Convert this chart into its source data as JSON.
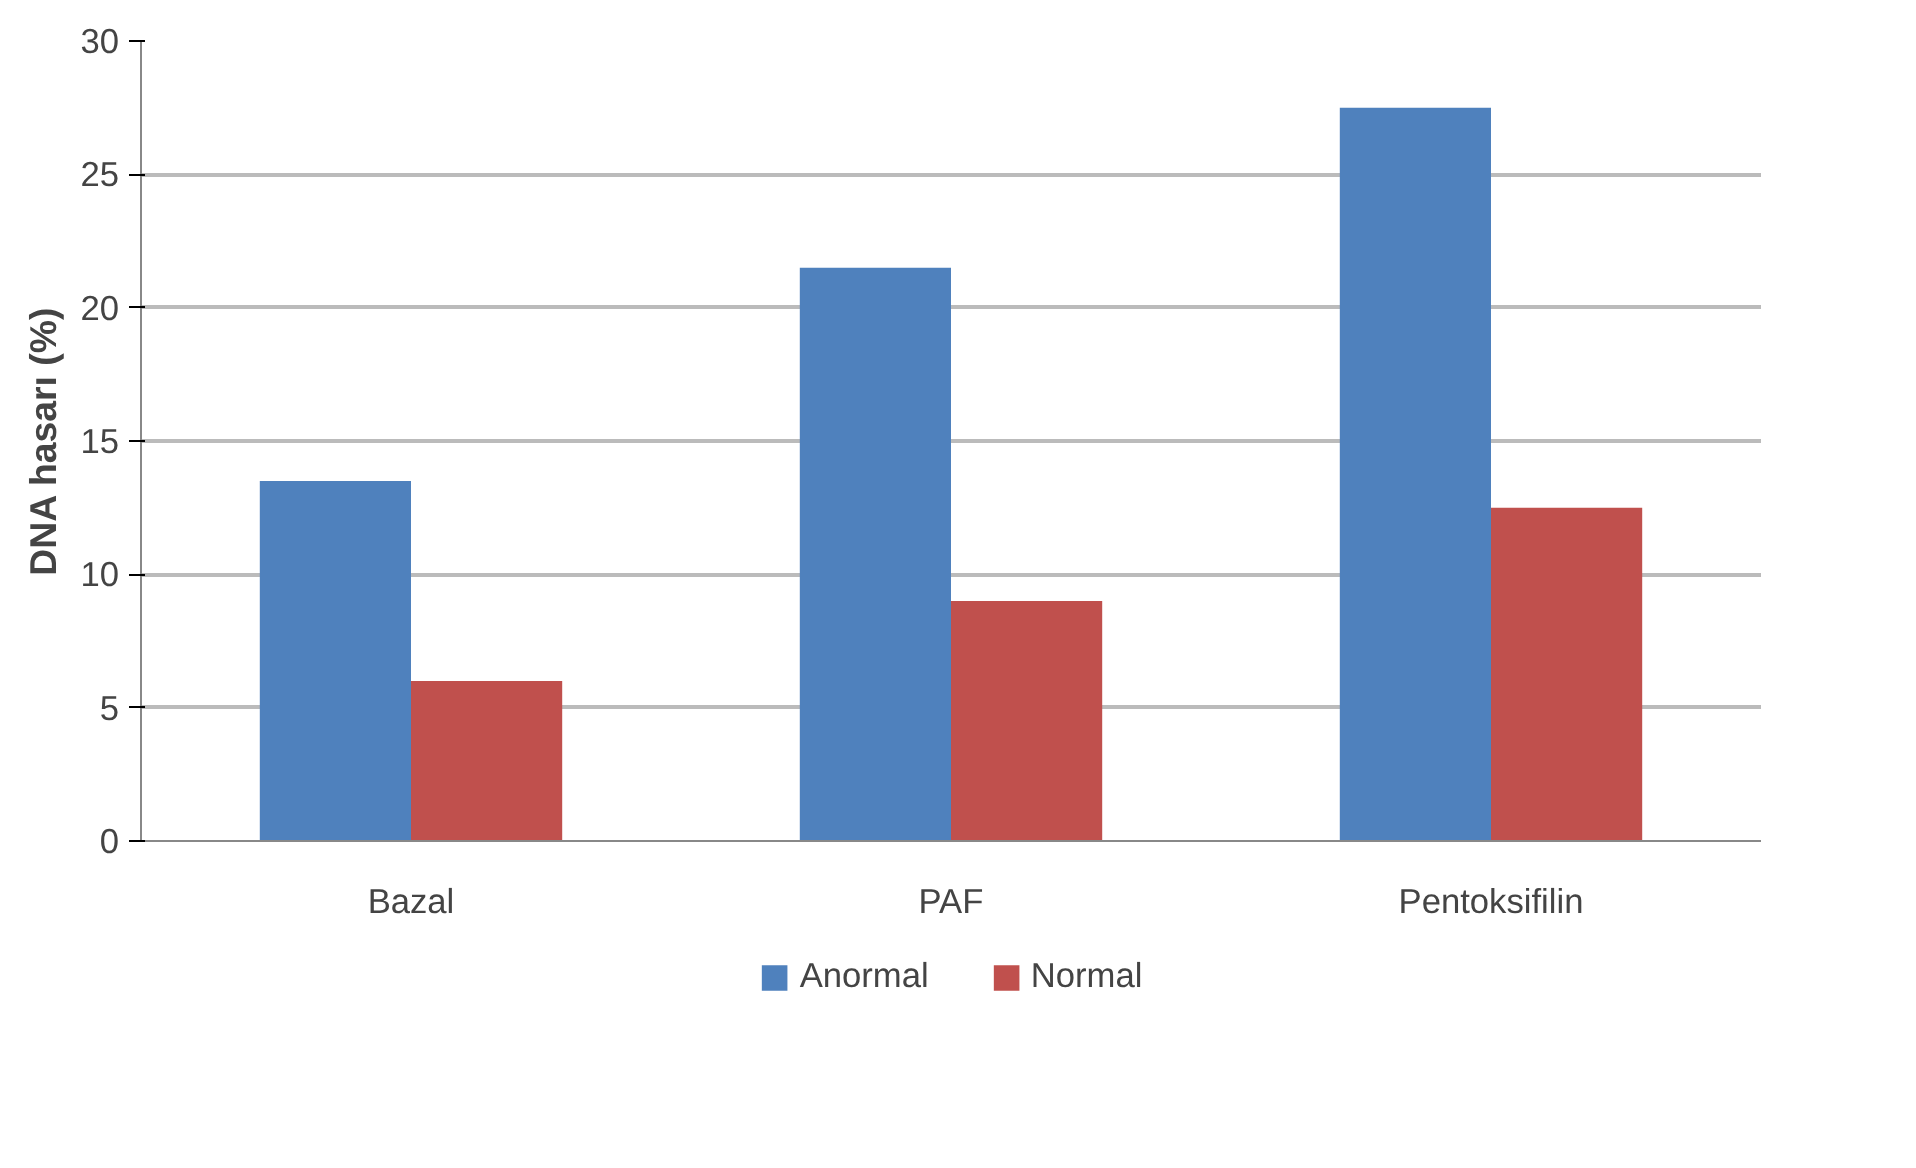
{
  "chart_data": {
    "type": "bar",
    "ylabel": "DNA hasarı (%)",
    "categories": [
      "Bazal",
      "PAF",
      "Pentoksifilin"
    ],
    "series": [
      {
        "name": "Anormal",
        "color": "#4f81bd",
        "values": [
          13.5,
          21.5,
          27.5
        ]
      },
      {
        "name": "Normal",
        "color": "#c0504d",
        "values": [
          6,
          9,
          12.5
        ]
      }
    ],
    "ylim": [
      0,
      30
    ],
    "yticks": [
      0,
      5,
      10,
      15,
      20,
      25,
      30
    ],
    "grid": "y",
    "legend": "bottom"
  }
}
